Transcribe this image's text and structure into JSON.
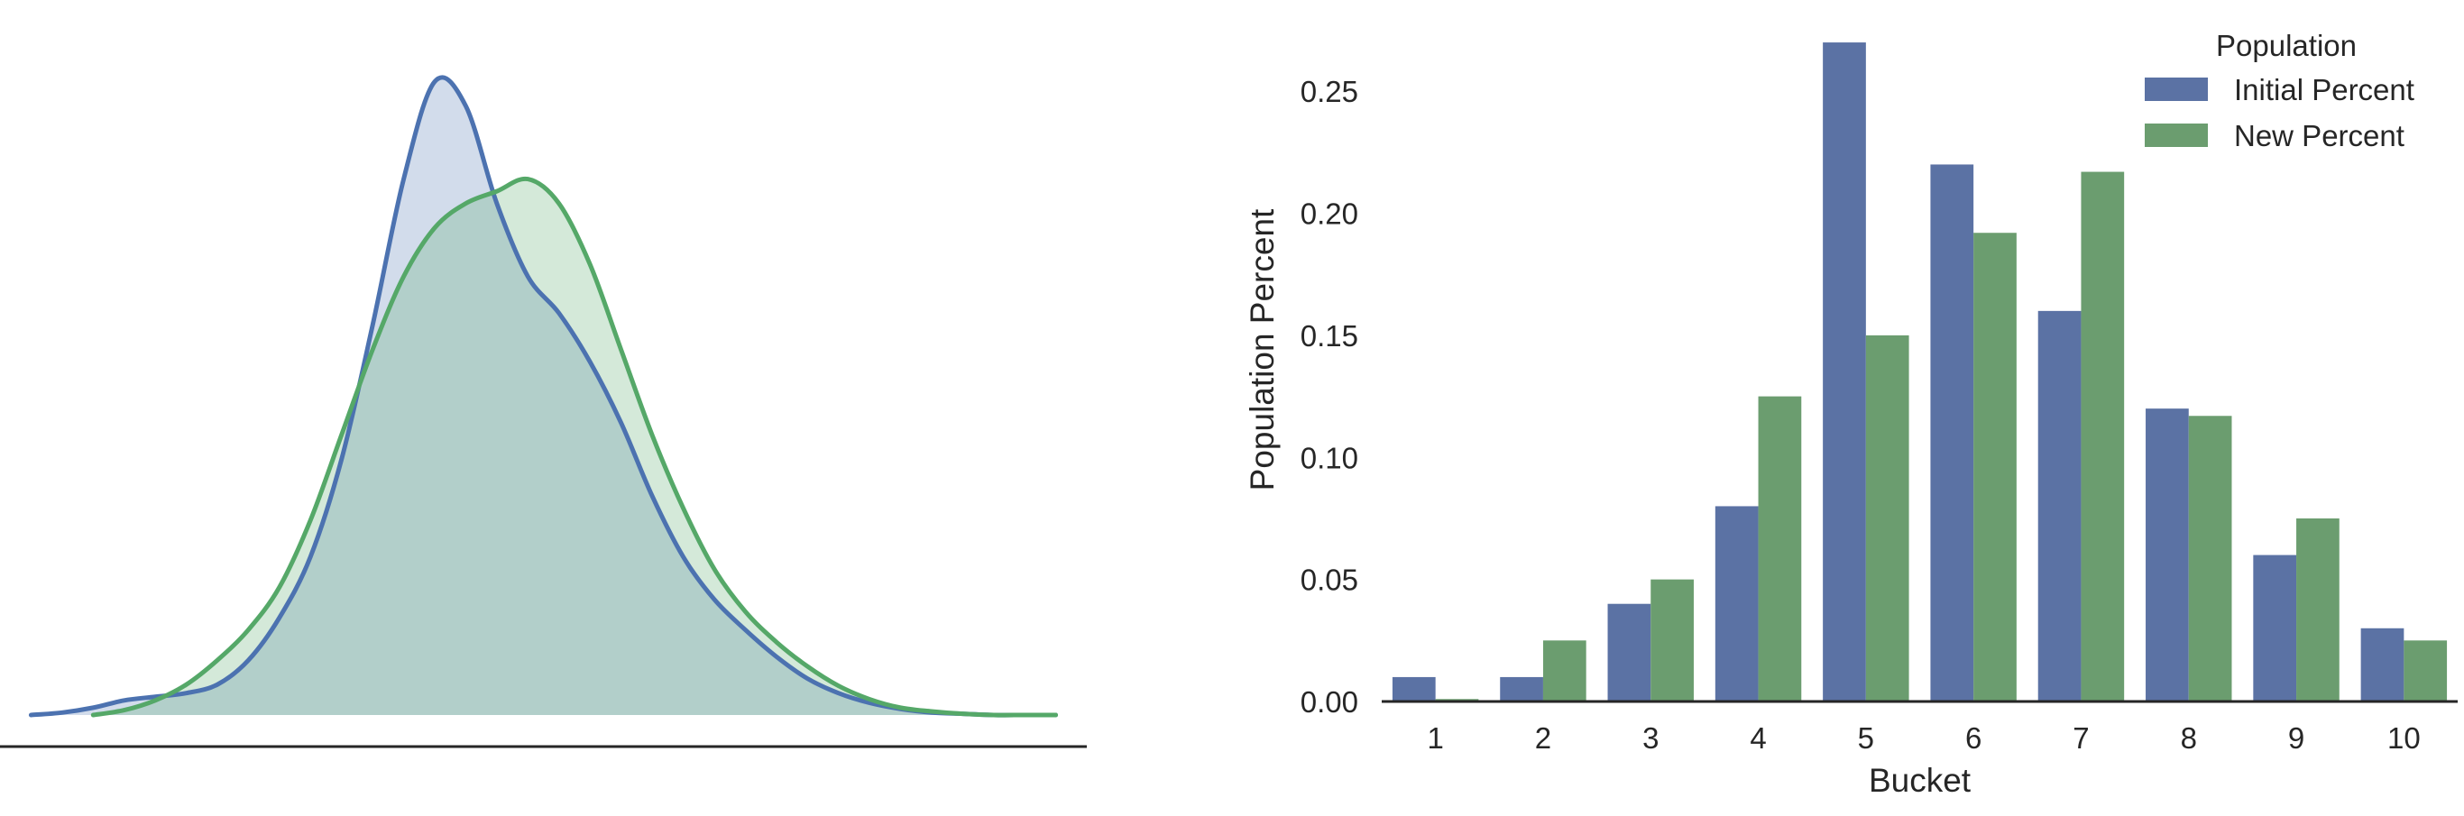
{
  "colors": {
    "initial": "#5b72a4",
    "initial_line": "#4c72b0",
    "new": "#6b9d6f",
    "new_line": "#55a868",
    "axis": "#262626"
  },
  "chart_data": [
    {
      "type": "area",
      "x": [
        -3.2,
        -3.0,
        -2.8,
        -2.6,
        -2.4,
        -2.2,
        -2.0,
        -1.8,
        -1.6,
        -1.4,
        -1.2,
        -1.0,
        -0.8,
        -0.6,
        -0.4,
        -0.2,
        0.0,
        0.2,
        0.4,
        0.6,
        0.8,
        1.0,
        1.2,
        1.4,
        1.6,
        1.8,
        2.0,
        2.2,
        2.4,
        2.6,
        2.8,
        3.0,
        3.2,
        3.4
      ],
      "series": [
        {
          "values": [
            0.0,
            0.002,
            0.006,
            0.012,
            0.015,
            0.018,
            0.025,
            0.045,
            0.08,
            0.13,
            0.21,
            0.32,
            0.44,
            0.52,
            0.5,
            0.42,
            0.36,
            0.33,
            0.29,
            0.24,
            0.18,
            0.13,
            0.095,
            0.07,
            0.048,
            0.03,
            0.018,
            0.01,
            0.005,
            0.002,
            0.001,
            0.0,
            0.0,
            0.0
          ],
          "color": "#4c72b0"
        },
        {
          "values": [
            null,
            null,
            0.0,
            0.004,
            0.012,
            0.025,
            0.045,
            0.07,
            0.105,
            0.16,
            0.23,
            0.3,
            0.36,
            0.4,
            0.42,
            0.43,
            0.44,
            0.42,
            0.37,
            0.3,
            0.23,
            0.17,
            0.12,
            0.085,
            0.06,
            0.04,
            0.024,
            0.013,
            0.006,
            0.003,
            0.001,
            0.0,
            0.0,
            0.0
          ],
          "color": "#55a868"
        }
      ],
      "ylim": [
        0,
        0.55
      ],
      "xlim": [
        -3.4,
        3.6
      ],
      "grid": false
    },
    {
      "type": "bar",
      "xlabel": "Bucket",
      "ylabel": "Population Percent",
      "categories": [
        "1",
        "2",
        "3",
        "4",
        "5",
        "6",
        "7",
        "8",
        "9",
        "10"
      ],
      "series": [
        {
          "name": "Initial Percent",
          "values": [
            0.01,
            0.01,
            0.04,
            0.08,
            0.27,
            0.22,
            0.16,
            0.12,
            0.06,
            0.03
          ]
        },
        {
          "name": "New Percent",
          "values": [
            0.001,
            0.025,
            0.05,
            0.125,
            0.15,
            0.192,
            0.217,
            0.117,
            0.075,
            0.025
          ]
        }
      ],
      "ylim": [
        0,
        0.28
      ],
      "yticks": [
        "0.00",
        "0.05",
        "0.10",
        "0.15",
        "0.20",
        "0.25"
      ],
      "ytick_values": [
        0,
        0.05,
        0.1,
        0.15,
        0.2,
        0.25
      ],
      "legend": {
        "title": "Population",
        "position": "top-right"
      },
      "grid": false
    }
  ]
}
